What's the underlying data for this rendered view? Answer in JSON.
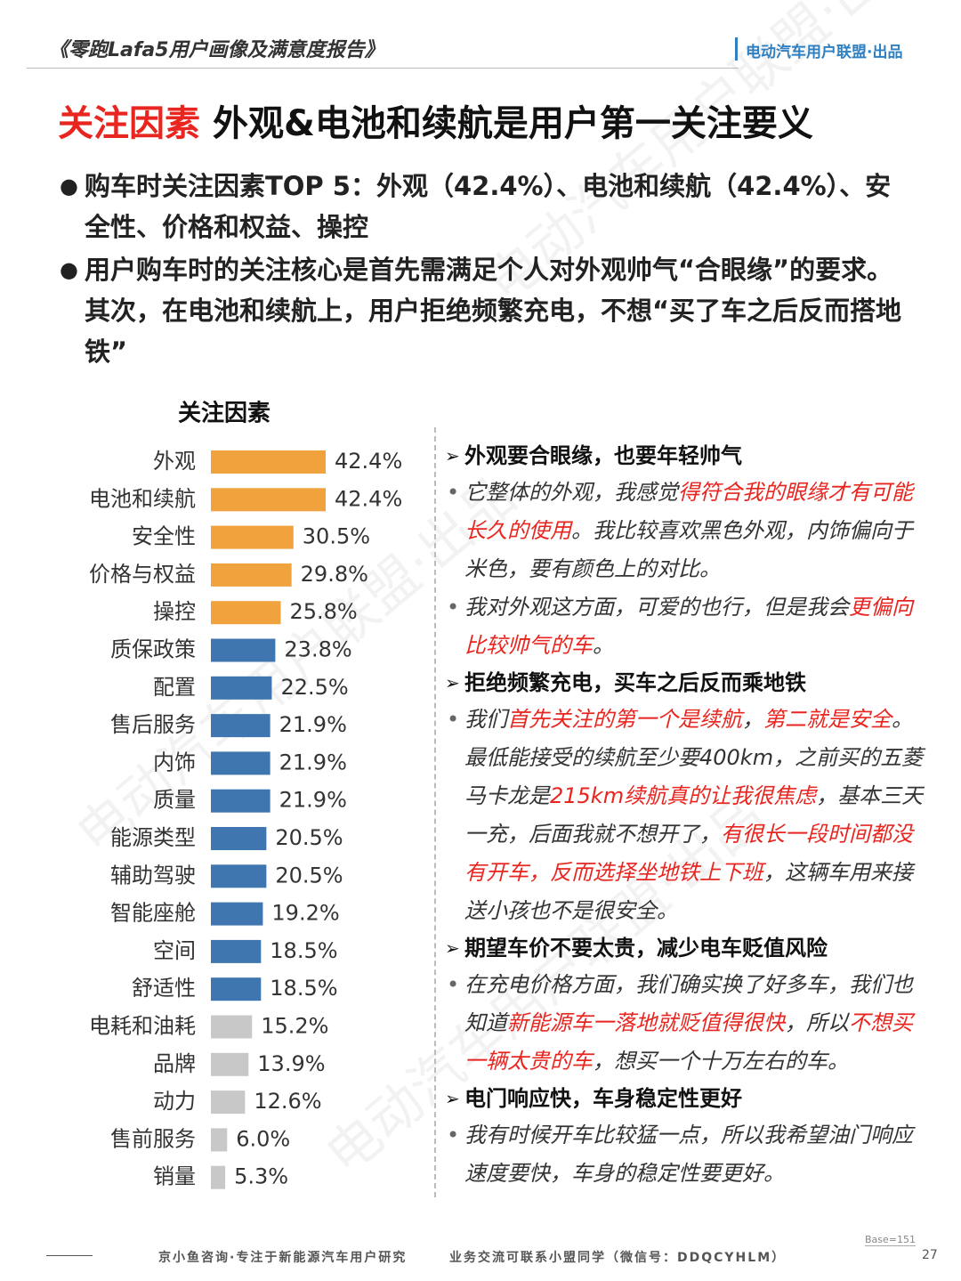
{
  "header": {
    "report_title": "《零跑Lafa5用户画像及满意度报告》",
    "brand": "电动汽车用户联盟·出品"
  },
  "title": {
    "highlight": "关注因素",
    "text": "外观&电池和续航是用户第一关注要义"
  },
  "bullets": [
    "购车时关注因素TOP 5：外观（42.4%）、电池和续航（42.4%）、安全性、价格和权益、操控",
    "用户购车时的关注核心是首先需满足个人对外观帅气“合眼缘”的要求。其次，在电池和续航上，用户拒绝频繁充电，不想“买了车之后反而搭地铁”"
  ],
  "chart_data": {
    "type": "bar",
    "orientation": "horizontal",
    "title": "关注因素",
    "categories": [
      "外观",
      "电池和续航",
      "安全性",
      "价格与权益",
      "操控",
      "质保政策",
      "配置",
      "售后服务",
      "内饰",
      "质量",
      "能源类型",
      "辅助驾驶",
      "智能座舱",
      "空间",
      "舒适性",
      "电耗和油耗",
      "品牌",
      "动力",
      "售前服务",
      "销量"
    ],
    "values": [
      42.4,
      42.4,
      30.5,
      29.8,
      25.8,
      23.8,
      22.5,
      21.9,
      21.9,
      21.9,
      20.5,
      20.5,
      19.2,
      18.5,
      18.5,
      15.2,
      13.9,
      12.6,
      6.0,
      5.3
    ],
    "value_labels": [
      "42.4%",
      "42.4%",
      "30.5%",
      "29.8%",
      "25.8%",
      "23.8%",
      "22.5%",
      "21.9%",
      "21.9%",
      "21.9%",
      "20.5%",
      "20.5%",
      "19.2%",
      "18.5%",
      "18.5%",
      "15.2%",
      "13.9%",
      "12.6%",
      "6.0%",
      "5.3%"
    ],
    "colors": [
      "#f0a23c",
      "#f0a23c",
      "#f0a23c",
      "#f0a23c",
      "#f0a23c",
      "#3f76b0",
      "#3f76b0",
      "#3f76b0",
      "#3f76b0",
      "#3f76b0",
      "#3f76b0",
      "#3f76b0",
      "#3f76b0",
      "#3f76b0",
      "#3f76b0",
      "#c8c8c8",
      "#c8c8c8",
      "#c8c8c8",
      "#c8c8c8",
      "#c8c8c8"
    ]
  },
  "quotes": [
    {
      "heading": "外观要合眼缘，也要年轻帅气",
      "items": [
        [
          {
            "text": "它整体的外观，我感觉"
          },
          {
            "text": "得符合我的眼缘才有可能长久的使用",
            "em": true
          },
          {
            "text": "。我比较喜欢黑色外观，内饰偏向于米色，要有颜色上的对比。"
          }
        ],
        [
          {
            "text": "我对外观这方面，可爱的也行，但是我会"
          },
          {
            "text": "更偏向比较帅气的车",
            "em": true
          },
          {
            "text": "。"
          }
        ]
      ]
    },
    {
      "heading": "拒绝频繁充电，买车之后反而乘地铁",
      "items": [
        [
          {
            "text": "我们"
          },
          {
            "text": "首先关注的第一个是续航",
            "em": true
          },
          {
            "text": "，"
          },
          {
            "text": "第二就是安全",
            "em": true
          },
          {
            "text": "。最低能接受的续航至少要400km，之前买的五菱马卡龙是"
          },
          {
            "text": "215km续航真的让我很焦虑",
            "em": true
          },
          {
            "text": "，基本三天一充，后面我就不想开了，"
          },
          {
            "text": "有很长一段时间都没有开车，反而选择坐地铁上下班",
            "em": true
          },
          {
            "text": "，这辆车用来接送小孩也不是很安全。"
          }
        ]
      ]
    },
    {
      "heading": "期望车价不要太贵，减少电车贬值风险",
      "items": [
        [
          {
            "text": "在充电价格方面，我们确实换了好多车，我们也知道"
          },
          {
            "text": "新能源车一落地就贬值得很快",
            "em": true
          },
          {
            "text": "，所以"
          },
          {
            "text": "不想买一辆太贵的车",
            "em": true
          },
          {
            "text": "，想买一个十万左右的车。"
          }
        ]
      ]
    },
    {
      "heading": "电门响应快，车身稳定性更好",
      "items": [
        [
          {
            "text": "我有时候开车比较猛一点，所以我希望油门响应速度要快，车身的稳定性要更好。"
          }
        ]
      ]
    }
  ],
  "footer": {
    "left": "京小鱼咨询·专注于新能源汽车用户研究",
    "right": "业务交流可联系小盟同学（微信号：DDQCYHLM）",
    "base": "Base=151",
    "page": "27"
  }
}
